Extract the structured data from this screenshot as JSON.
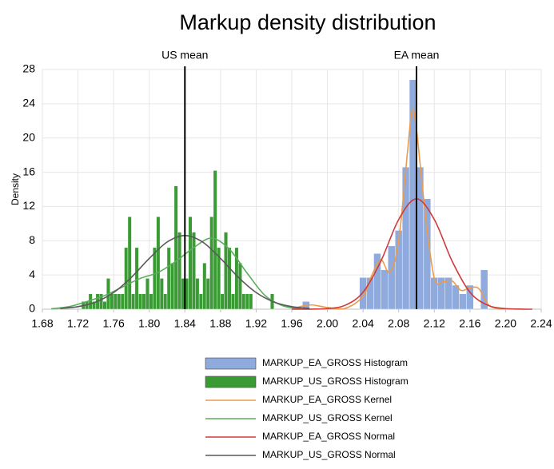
{
  "chart_data": {
    "type": "histogram",
    "title": "Markup density distribution",
    "y_label": "Density",
    "xlim": [
      1.68,
      2.24
    ],
    "xticks": [
      1.68,
      1.72,
      1.76,
      {
        "value": 1.8,
        "label": "1.80"
      },
      1.84,
      1.88,
      1.92,
      1.96,
      {
        "value": 2.0,
        "label": "2.00"
      },
      2.04,
      2.08,
      2.12,
      2.16,
      {
        "value": 2.2,
        "label": "2.20"
      },
      2.24
    ],
    "ylim": [
      0,
      28
    ],
    "yticks": [
      0,
      4,
      8,
      12,
      16,
      20,
      24,
      28
    ],
    "grid": true,
    "annotations": [
      {
        "text": "US mean",
        "x": 1.84
      },
      {
        "text": "EA mean",
        "x": 2.1
      }
    ],
    "series": [
      {
        "name": "MARKUP_EA_GROSS Histogram",
        "type": "histogram",
        "color": "#8faadc",
        "bins": [
          1.972,
          1.98,
          1.988,
          1.996,
          2.004,
          2.012,
          2.02,
          2.028,
          2.036,
          2.044,
          2.052,
          2.06,
          2.068,
          2.076,
          2.084,
          2.092,
          2.1,
          2.108,
          2.116,
          2.124,
          2.132,
          2.14,
          2.148,
          2.156,
          2.164,
          2.172,
          2.18
        ],
        "values": [
          0.9,
          0,
          0,
          0,
          0,
          0,
          0,
          0,
          3.7,
          3.7,
          6.5,
          4.6,
          7.4,
          9.2,
          16.6,
          26.8,
          16.6,
          12.9,
          3.7,
          3.7,
          3.7,
          2.8,
          1.8,
          2.8,
          0,
          4.6
        ]
      },
      {
        "name": "MARKUP_US_GROSS Histogram",
        "type": "histogram",
        "color": "#3a9b35",
        "bins": [
          1.724,
          1.728,
          1.732,
          1.736,
          1.74,
          1.744,
          1.748,
          1.752,
          1.756,
          1.76,
          1.764,
          1.768,
          1.772,
          1.776,
          1.78,
          1.784,
          1.788,
          1.792,
          1.796,
          1.8,
          1.804,
          1.808,
          1.812,
          1.816,
          1.82,
          1.824,
          1.828,
          1.832,
          1.836,
          1.84,
          1.844,
          1.848,
          1.852,
          1.856,
          1.86,
          1.864,
          1.868,
          1.872,
          1.876,
          1.88,
          1.884,
          1.888,
          1.892,
          1.896,
          1.9,
          1.904,
          1.908,
          1.912,
          1.916,
          1.92,
          1.924,
          1.928,
          1.932,
          1.936,
          1.94
        ],
        "values": [
          0.9,
          0.9,
          1.8,
          0.9,
          1.8,
          1.8,
          0.9,
          3.6,
          1.8,
          1.8,
          1.8,
          1.8,
          7.2,
          10.8,
          1.8,
          7.2,
          1.8,
          1.8,
          3.6,
          1.8,
          7.2,
          10.8,
          3.6,
          1.8,
          7.2,
          5.4,
          14.4,
          9.0,
          3.6,
          3.6,
          10.8,
          9.0,
          3.6,
          1.8,
          5.4,
          3.6,
          10.8,
          16.2,
          7.2,
          1.8,
          9.0,
          7.2,
          1.8,
          7.2,
          5.4,
          1.8,
          1.8,
          1.8,
          0,
          0,
          0,
          0,
          0,
          1.8
        ]
      },
      {
        "name": "MARKUP_EA_GROSS Kernel",
        "type": "line",
        "color": "#ed9a4c",
        "x": [
          1.96,
          1.98,
          2.0,
          2.02,
          2.04,
          2.05,
          2.06,
          2.07,
          2.08,
          2.09,
          2.095,
          2.1,
          2.11,
          2.12,
          2.13,
          2.14,
          2.15,
          2.16,
          2.17,
          2.18,
          2.19,
          2.2
        ],
        "values": [
          0.05,
          0.5,
          0.2,
          0.1,
          1.5,
          4.0,
          5.8,
          4.3,
          8.0,
          18.5,
          23.2,
          21.0,
          11.0,
          3.6,
          3.2,
          3.3,
          2.2,
          2.5,
          2.4,
          0.6,
          0.1,
          0.02
        ]
      },
      {
        "name": "MARKUP_US_GROSS Kernel",
        "type": "line",
        "color": "#5bad5b",
        "x": [
          1.69,
          1.71,
          1.73,
          1.75,
          1.77,
          1.79,
          1.81,
          1.83,
          1.85,
          1.87,
          1.89,
          1.91,
          1.93,
          1.95,
          1.97
        ],
        "values": [
          0.05,
          0.3,
          0.9,
          1.6,
          2.6,
          3.6,
          4.3,
          5.6,
          7.2,
          8.3,
          7.0,
          4.2,
          1.6,
          0.4,
          0.05
        ]
      },
      {
        "name": "MARKUP_EA_GROSS Normal",
        "type": "line",
        "color": "#d03a3a",
        "x": [
          1.96,
          1.98,
          2.0,
          2.02,
          2.04,
          2.06,
          2.08,
          2.1,
          2.12,
          2.14,
          2.16,
          2.18,
          2.2,
          2.22,
          2.23
        ],
        "values": [
          0,
          0.01,
          0.07,
          0.46,
          1.98,
          5.61,
          10.48,
          12.9,
          10.48,
          5.61,
          1.98,
          0.46,
          0.07,
          0.01,
          0
        ]
      },
      {
        "name": "MARKUP_US_GROSS Normal",
        "type": "line",
        "color": "#595959",
        "x": [
          1.7,
          1.72,
          1.74,
          1.76,
          1.78,
          1.8,
          1.82,
          1.84,
          1.86,
          1.88,
          1.9,
          1.92,
          1.94,
          1.96,
          1.98
        ],
        "values": [
          0.09,
          0.3,
          0.84,
          1.95,
          3.73,
          5.93,
          7.84,
          8.6,
          7.84,
          5.93,
          3.73,
          1.95,
          0.84,
          0.3,
          0.09
        ]
      }
    ]
  }
}
